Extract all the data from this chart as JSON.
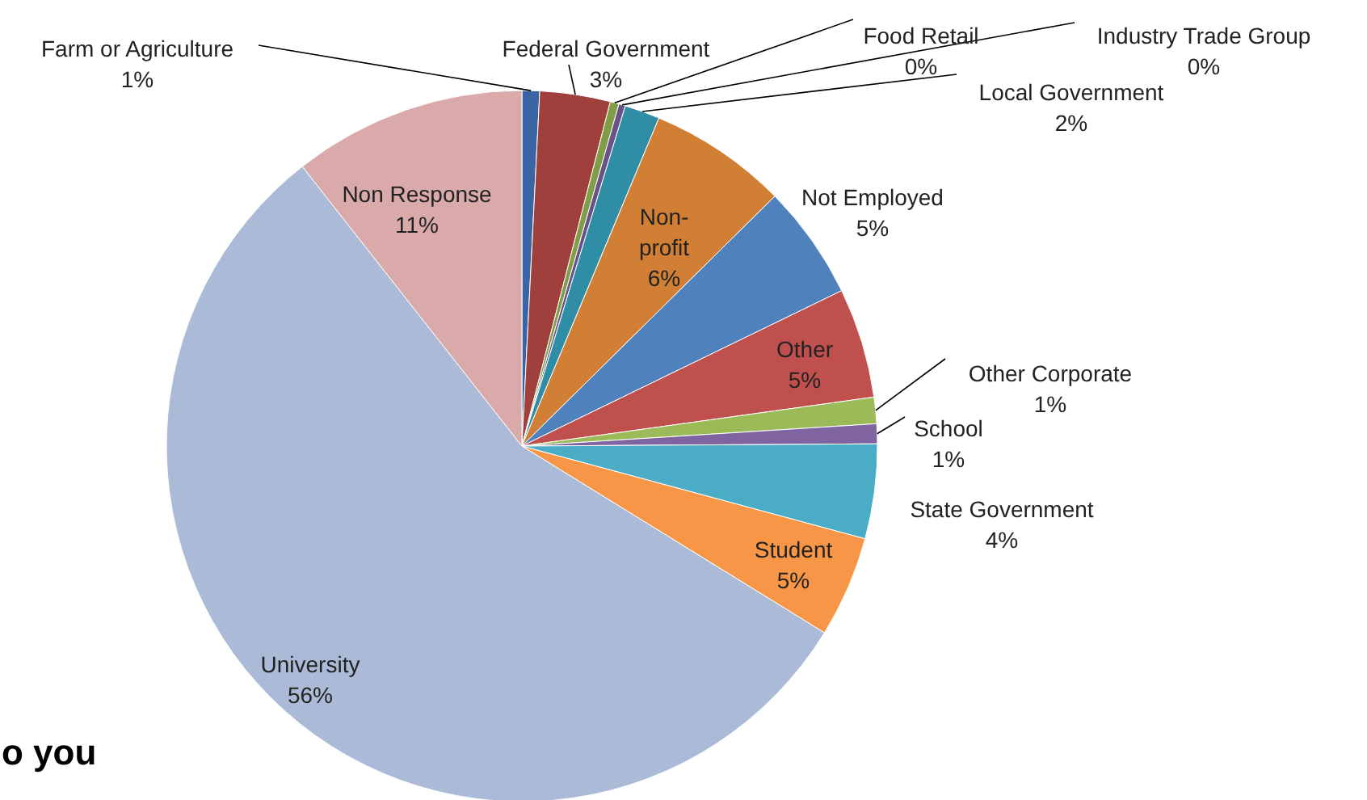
{
  "chart_data": {
    "type": "pie",
    "categories": [
      "Farm or Agriculture",
      "Federal Government",
      "Food Retail",
      "Industry Trade Group",
      "Local Government",
      "Non-profit",
      "Not Employed",
      "Other",
      "Other Corporate",
      "School",
      "State Government",
      "Student",
      "University",
      "Non Response"
    ],
    "values": [
      0.8,
      3.2,
      0.4,
      0.3,
      1.6,
      6.3,
      5.2,
      5.0,
      1.2,
      0.9,
      4.3,
      4.6,
      55.6,
      10.6
    ],
    "value_labels": [
      "1%",
      "3%",
      "0%",
      "0%",
      "2%",
      "6%",
      "5%",
      "5%",
      "1%",
      "1%",
      "4%",
      "5%",
      "56%",
      "11%"
    ],
    "colors": [
      "#3b64a4",
      "#a0403d",
      "#7f9e47",
      "#6a5187",
      "#2f8ea5",
      "#d17f35",
      "#4f81bd",
      "#c0504d",
      "#9bbb59",
      "#8064a2",
      "#4bacc6",
      "#f79646",
      "#aabad7",
      "#d9aaa9"
    ],
    "annotations": [
      "o you"
    ]
  }
}
